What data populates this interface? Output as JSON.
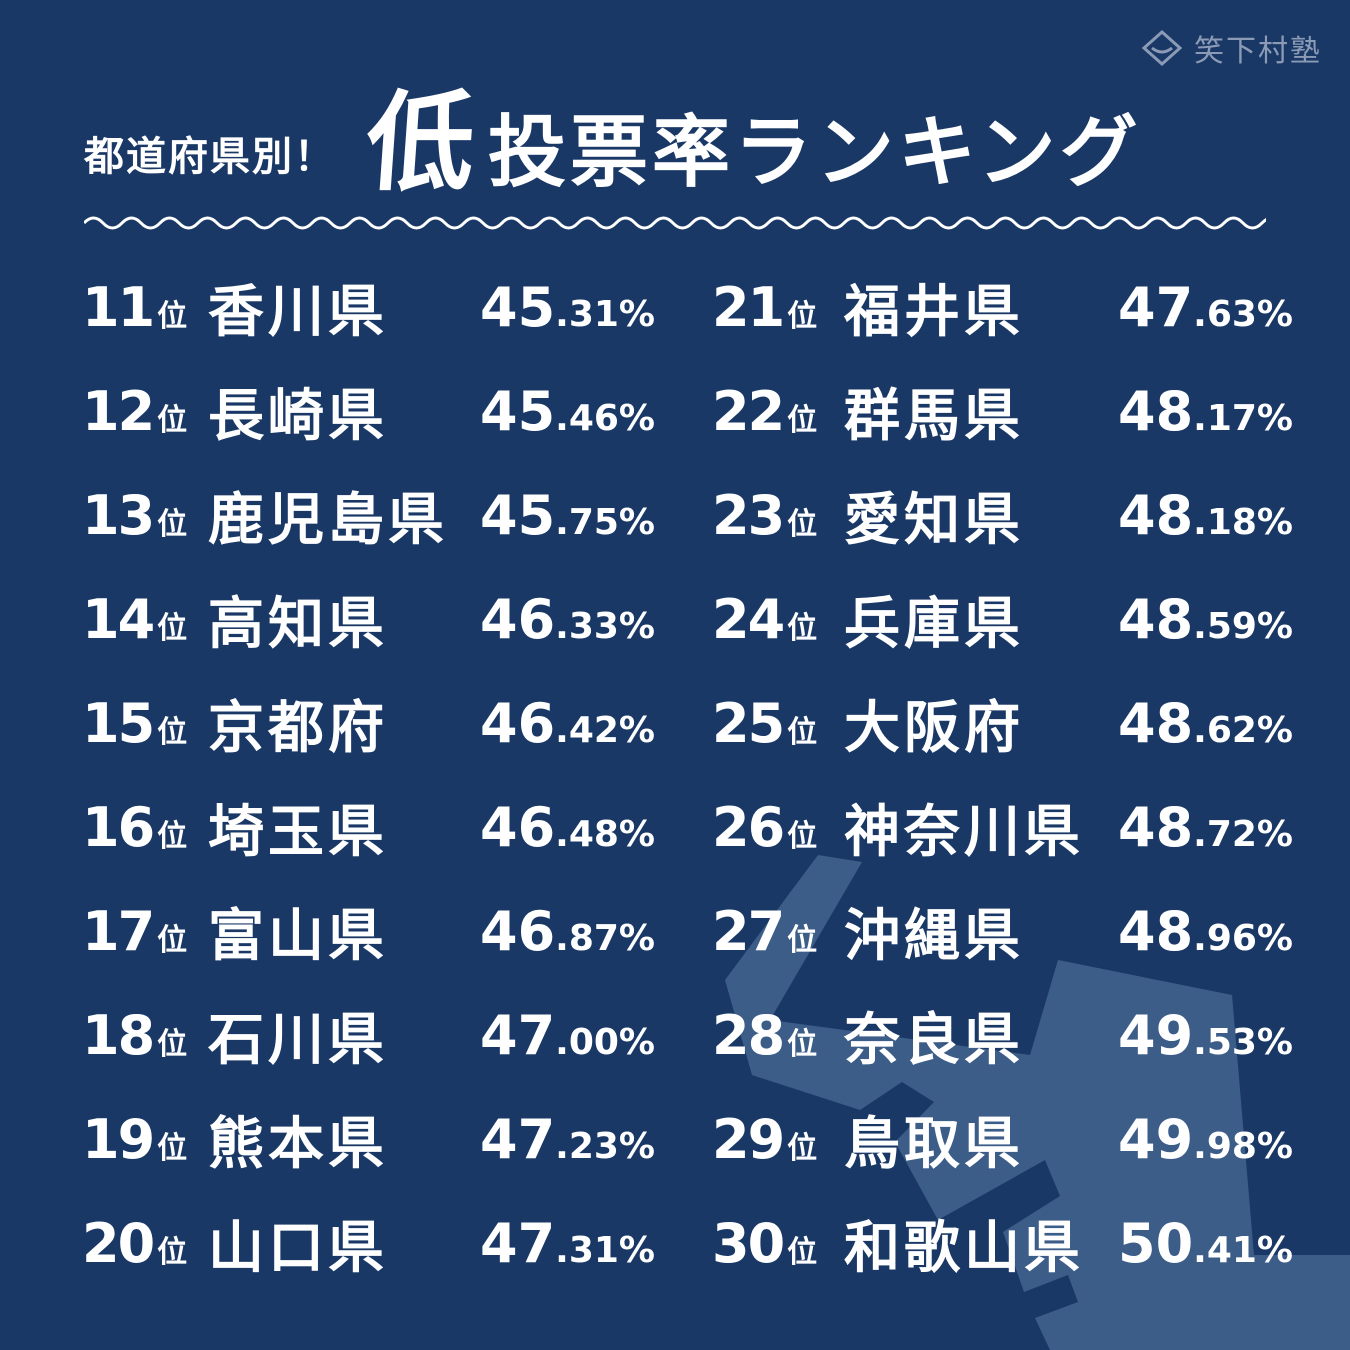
{
  "brand": {
    "name": "笑下村塾"
  },
  "title": {
    "prefix": "都道府県別！",
    "emphasis": "低",
    "main": "投票率ランキング"
  },
  "rank_suffix": "位",
  "rankings": [
    {
      "rank": "11",
      "prefecture": "香川県",
      "rate_int": "45",
      "rate_dec": ".31%"
    },
    {
      "rank": "12",
      "prefecture": "長崎県",
      "rate_int": "45",
      "rate_dec": ".46%"
    },
    {
      "rank": "13",
      "prefecture": "鹿児島県",
      "rate_int": "45",
      "rate_dec": ".75%"
    },
    {
      "rank": "14",
      "prefecture": "高知県",
      "rate_int": "46",
      "rate_dec": ".33%"
    },
    {
      "rank": "15",
      "prefecture": "京都府",
      "rate_int": "46",
      "rate_dec": ".42%"
    },
    {
      "rank": "16",
      "prefecture": "埼玉県",
      "rate_int": "46",
      "rate_dec": ".48%"
    },
    {
      "rank": "17",
      "prefecture": "富山県",
      "rate_int": "46",
      "rate_dec": ".87%"
    },
    {
      "rank": "18",
      "prefecture": "石川県",
      "rate_int": "47",
      "rate_dec": ".00%"
    },
    {
      "rank": "19",
      "prefecture": "熊本県",
      "rate_int": "47",
      "rate_dec": ".23%"
    },
    {
      "rank": "20",
      "prefecture": "山口県",
      "rate_int": "47",
      "rate_dec": ".31%"
    },
    {
      "rank": "21",
      "prefecture": "福井県",
      "rate_int": "47",
      "rate_dec": ".63%"
    },
    {
      "rank": "22",
      "prefecture": "群馬県",
      "rate_int": "48",
      "rate_dec": ".17%"
    },
    {
      "rank": "23",
      "prefecture": "愛知県",
      "rate_int": "48",
      "rate_dec": ".18%"
    },
    {
      "rank": "24",
      "prefecture": "兵庫県",
      "rate_int": "48",
      "rate_dec": ".59%"
    },
    {
      "rank": "25",
      "prefecture": "大阪府",
      "rate_int": "48",
      "rate_dec": ".62%"
    },
    {
      "rank": "26",
      "prefecture": "神奈川県",
      "rate_int": "48",
      "rate_dec": ".72%"
    },
    {
      "rank": "27",
      "prefecture": "沖縄県",
      "rate_int": "48",
      "rate_dec": ".96%"
    },
    {
      "rank": "28",
      "prefecture": "奈良県",
      "rate_int": "49",
      "rate_dec": ".53%"
    },
    {
      "rank": "29",
      "prefecture": "鳥取県",
      "rate_int": "49",
      "rate_dec": ".98%"
    },
    {
      "rank": "30",
      "prefecture": "和歌山県",
      "rate_int": "50",
      "rate_dec": ".41%"
    }
  ],
  "colors": {
    "background": "#1a3866",
    "text": "#ffffff",
    "brand": "#8b9bb6",
    "watermark": "#3d5d89"
  },
  "icons": {
    "brand_logo": "brand-logo-icon",
    "ballot_box": "ballot-box-icon"
  }
}
